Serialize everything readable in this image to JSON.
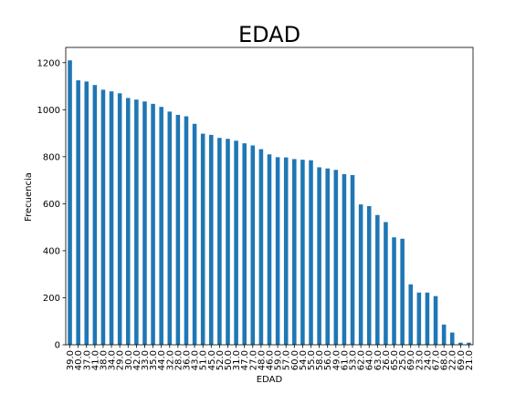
{
  "chart_data": {
    "type": "bar",
    "title": "EDAD",
    "xlabel": "EDAD",
    "ylabel": "Frecuencia",
    "ylim": [
      0,
      1265
    ],
    "yticks": [
      0,
      200,
      400,
      600,
      800,
      1000,
      1200
    ],
    "yticklabels": [
      "0",
      "200",
      "400",
      "600",
      "800",
      "1000",
      "1200"
    ],
    "grid": false,
    "legend": "none",
    "color": "#1f77b4",
    "categories": [
      "39.0",
      "40.0",
      "37.0",
      "41.0",
      "38.0",
      "34.0",
      "29.0",
      "30.0",
      "42.0",
      "33.0",
      "35.0",
      "44.0",
      "32.0",
      "28.0",
      "36.0",
      "43.0",
      "51.0",
      "45.0",
      "52.0",
      "50.0",
      "31.0",
      "47.0",
      "27.0",
      "48.0",
      "46.0",
      "59.0",
      "57.0",
      "60.0",
      "54.0",
      "55.0",
      "58.0",
      "56.0",
      "49.0",
      "61.0",
      "53.0",
      "62.0",
      "64.0",
      "63.0",
      "26.0",
      "65.0",
      "25.0",
      "69.0",
      "23.0",
      "24.0",
      "67.0",
      "68.0",
      "22.0",
      "69.0",
      "21.0"
    ],
    "values": [
      1210,
      1125,
      1120,
      1105,
      1085,
      1078,
      1070,
      1050,
      1043,
      1035,
      1025,
      1012,
      992,
      978,
      972,
      940,
      898,
      893,
      880,
      876,
      868,
      857,
      848,
      832,
      810,
      798,
      797,
      790,
      787,
      785,
      755,
      750,
      744,
      726,
      722,
      597,
      590,
      552,
      522,
      457,
      451,
      257,
      222,
      222,
      207,
      86,
      52,
      9,
      9
    ]
  }
}
